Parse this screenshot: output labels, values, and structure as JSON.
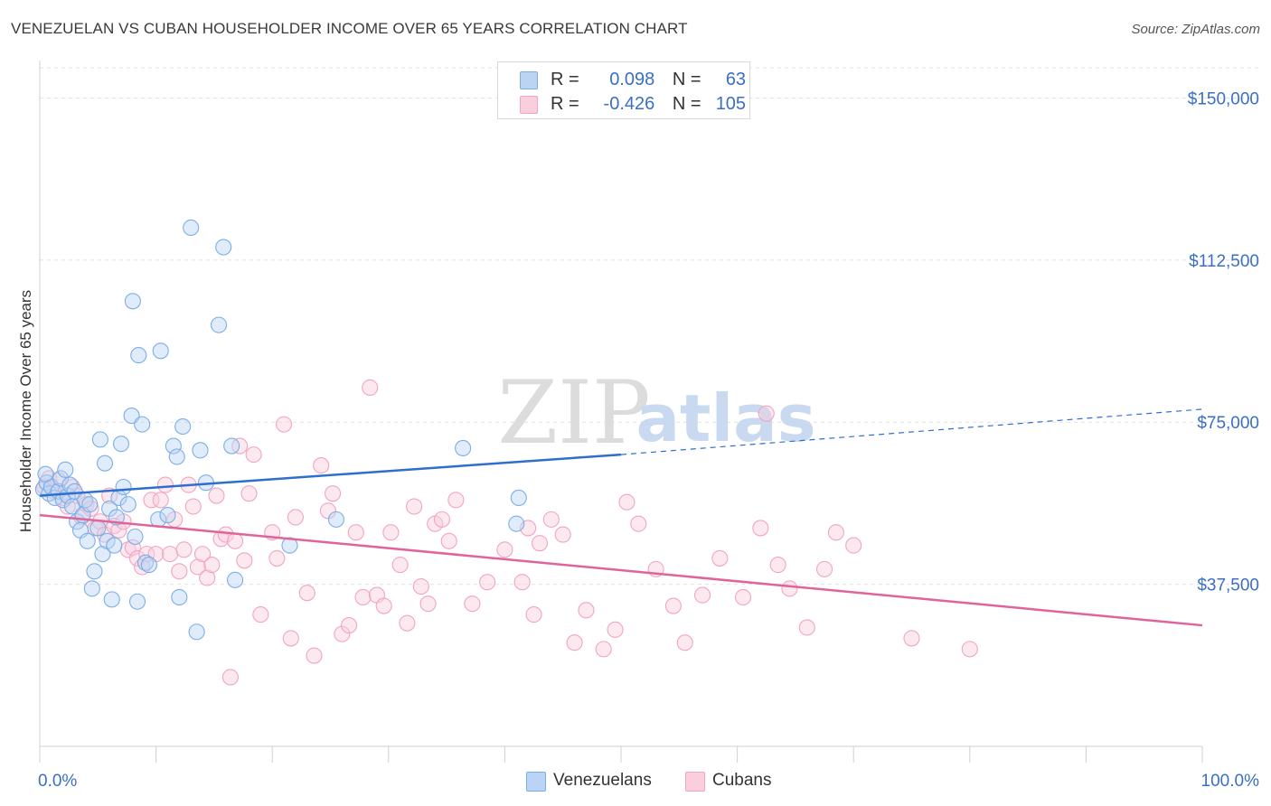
{
  "header": {
    "title": "VENEZUELAN VS CUBAN HOUSEHOLDER INCOME OVER 65 YEARS CORRELATION CHART",
    "source": "Source: ZipAtlas.com"
  },
  "watermark": {
    "zip": "ZIP",
    "atlas": "atlas"
  },
  "legend": {
    "venezuelans": {
      "r_label": "R =",
      "r_value": "0.098",
      "n_label": "N =",
      "n_value": "63"
    },
    "cubans": {
      "r_label": "R =",
      "r_value": "-0.426",
      "n_label": "N =",
      "n_value": "105"
    }
  },
  "chart_data": {
    "type": "scatter",
    "title": "VENEZUELAN VS CUBAN HOUSEHOLDER INCOME OVER 65 YEARS CORRELATION CHART",
    "xlabel": "",
    "ylabel": "Householder Income Over 65 years",
    "x_tick_labels": [
      "0.0%",
      "100.0%"
    ],
    "y_tick_labels": [
      "$37,500",
      "$75,000",
      "$112,500",
      "$150,000"
    ],
    "y_ticks": [
      37500,
      75000,
      112500,
      150000
    ],
    "xlim": [
      0,
      100
    ],
    "ylim": [
      0,
      157000
    ],
    "grid": "horizontal dashed",
    "legend_placement": "bottom-center",
    "colors": {
      "venezuelans": "#7aaee8",
      "venezuelans_line": "#2d6fce",
      "cubans": "#f2a4c0",
      "cubans_line": "#e0649a"
    },
    "series": [
      {
        "name": "Venezuelans",
        "trend": {
          "x": [
            0,
            50
          ],
          "y": [
            58000,
            67500
          ],
          "dashed_to": [
            100,
            78000
          ]
        },
        "points": [
          [
            0.3,
            59500
          ],
          [
            0.6,
            61000
          ],
          [
            0.8,
            58500
          ],
          [
            1.0,
            60000
          ],
          [
            1.3,
            57500
          ],
          [
            1.6,
            59000
          ],
          [
            1.8,
            62000
          ],
          [
            2.0,
            57000
          ],
          [
            2.2,
            64000
          ],
          [
            2.4,
            58000
          ],
          [
            2.6,
            60500
          ],
          [
            2.8,
            55500
          ],
          [
            3.0,
            59000
          ],
          [
            3.2,
            52000
          ],
          [
            3.5,
            50000
          ],
          [
            3.7,
            53500
          ],
          [
            3.9,
            57000
          ],
          [
            4.1,
            47500
          ],
          [
            4.3,
            56000
          ],
          [
            4.5,
            36500
          ],
          [
            4.7,
            40500
          ],
          [
            5.0,
            50500
          ],
          [
            5.2,
            71000
          ],
          [
            5.4,
            44500
          ],
          [
            5.6,
            65500
          ],
          [
            5.8,
            47500
          ],
          [
            6.0,
            55000
          ],
          [
            6.2,
            34000
          ],
          [
            6.4,
            46500
          ],
          [
            6.6,
            53000
          ],
          [
            6.8,
            57500
          ],
          [
            7.0,
            70000
          ],
          [
            7.2,
            60000
          ],
          [
            7.6,
            56000
          ],
          [
            7.9,
            76500
          ],
          [
            8.0,
            103000
          ],
          [
            8.2,
            48500
          ],
          [
            8.4,
            33500
          ],
          [
            8.5,
            90500
          ],
          [
            8.8,
            74500
          ],
          [
            9.1,
            42500
          ],
          [
            9.4,
            42000
          ],
          [
            10.2,
            52500
          ],
          [
            10.4,
            91500
          ],
          [
            11.0,
            53500
          ],
          [
            11.5,
            69500
          ],
          [
            11.8,
            67000
          ],
          [
            12.0,
            34500
          ],
          [
            12.3,
            74000
          ],
          [
            13.0,
            120000
          ],
          [
            13.5,
            26500
          ],
          [
            13.8,
            68500
          ],
          [
            14.3,
            61000
          ],
          [
            15.4,
            97500
          ],
          [
            15.8,
            115500
          ],
          [
            16.5,
            69500
          ],
          [
            16.8,
            38500
          ],
          [
            21.5,
            46500
          ],
          [
            25.5,
            52500
          ],
          [
            36.4,
            69000
          ],
          [
            41.0,
            51500
          ],
          [
            41.2,
            57500
          ],
          [
            0.5,
            63000
          ]
        ]
      },
      {
        "name": "Cubans",
        "trend": {
          "x": [
            0,
            100
          ],
          "y": [
            53500,
            28000
          ]
        },
        "points": [
          [
            0.4,
            60000
          ],
          [
            0.8,
            62000
          ],
          [
            1.2,
            59000
          ],
          [
            1.6,
            61500
          ],
          [
            2.0,
            57500
          ],
          [
            2.4,
            55500
          ],
          [
            2.8,
            60000
          ],
          [
            3.2,
            58000
          ],
          [
            3.6,
            53000
          ],
          [
            4.0,
            56000
          ],
          [
            4.4,
            55000
          ],
          [
            4.8,
            50500
          ],
          [
            5.2,
            52000
          ],
          [
            5.6,
            49000
          ],
          [
            6.0,
            58000
          ],
          [
            6.4,
            51000
          ],
          [
            6.8,
            50000
          ],
          [
            7.2,
            52000
          ],
          [
            7.6,
            45500
          ],
          [
            8.0,
            46000
          ],
          [
            8.4,
            43500
          ],
          [
            8.8,
            41500
          ],
          [
            9.2,
            44500
          ],
          [
            9.6,
            57000
          ],
          [
            10.0,
            44500
          ],
          [
            10.4,
            57000
          ],
          [
            10.8,
            60500
          ],
          [
            11.2,
            44500
          ],
          [
            11.6,
            52500
          ],
          [
            12.0,
            40500
          ],
          [
            12.4,
            45500
          ],
          [
            12.8,
            60500
          ],
          [
            13.2,
            55500
          ],
          [
            13.6,
            41500
          ],
          [
            14.0,
            44500
          ],
          [
            14.4,
            39000
          ],
          [
            14.8,
            42000
          ],
          [
            15.2,
            58000
          ],
          [
            15.6,
            48000
          ],
          [
            16.0,
            49000
          ],
          [
            16.4,
            16000
          ],
          [
            16.8,
            47500
          ],
          [
            17.2,
            69500
          ],
          [
            17.6,
            43000
          ],
          [
            18.0,
            58500
          ],
          [
            18.4,
            67500
          ],
          [
            19.0,
            30500
          ],
          [
            20.0,
            49500
          ],
          [
            20.4,
            43500
          ],
          [
            21.0,
            74500
          ],
          [
            21.6,
            25000
          ],
          [
            22.0,
            53000
          ],
          [
            23.0,
            35500
          ],
          [
            23.6,
            21000
          ],
          [
            24.2,
            65000
          ],
          [
            24.8,
            54500
          ],
          [
            25.2,
            58500
          ],
          [
            26.0,
            26000
          ],
          [
            26.6,
            28000
          ],
          [
            27.2,
            49500
          ],
          [
            27.8,
            34500
          ],
          [
            28.4,
            83000
          ],
          [
            29.0,
            35000
          ],
          [
            29.6,
            32500
          ],
          [
            30.2,
            49500
          ],
          [
            31.0,
            42000
          ],
          [
            31.6,
            28500
          ],
          [
            32.2,
            55500
          ],
          [
            32.8,
            37000
          ],
          [
            33.4,
            33000
          ],
          [
            34.0,
            51500
          ],
          [
            34.6,
            52500
          ],
          [
            35.2,
            47500
          ],
          [
            35.8,
            57000
          ],
          [
            37.2,
            33000
          ],
          [
            38.5,
            38000
          ],
          [
            40.0,
            45500
          ],
          [
            41.5,
            38000
          ],
          [
            42.0,
            50500
          ],
          [
            42.5,
            30500
          ],
          [
            43.0,
            47000
          ],
          [
            44.0,
            52500
          ],
          [
            45.0,
            49000
          ],
          [
            46.0,
            24000
          ],
          [
            47.0,
            31500
          ],
          [
            48.5,
            22500
          ],
          [
            49.5,
            27000
          ],
          [
            50.5,
            56500
          ],
          [
            51.5,
            51500
          ],
          [
            53.0,
            41000
          ],
          [
            54.5,
            32500
          ],
          [
            55.5,
            24000
          ],
          [
            57.0,
            35000
          ],
          [
            58.5,
            43500
          ],
          [
            60.5,
            34500
          ],
          [
            62.0,
            50500
          ],
          [
            62.5,
            77000
          ],
          [
            63.5,
            42000
          ],
          [
            64.5,
            36500
          ],
          [
            66.0,
            27500
          ],
          [
            67.5,
            41000
          ],
          [
            68.5,
            49500
          ],
          [
            70.0,
            46500
          ],
          [
            75.0,
            25000
          ],
          [
            80.0,
            22500
          ]
        ]
      }
    ]
  },
  "bottom_legend": {
    "venezuelans": "Venezuelans",
    "cubans": "Cubans"
  }
}
